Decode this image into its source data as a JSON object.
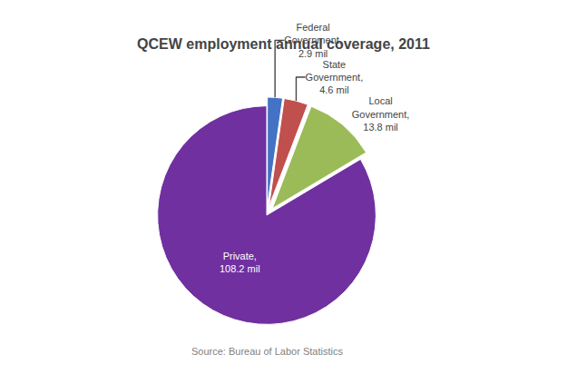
{
  "chart_data": {
    "type": "pie",
    "title": "QCEW employment annual coverage, 2011",
    "categories": [
      "Federal\nGovernment,\n2.9 mil",
      "State\nGovernment,\n4.6 mil",
      "Local\nGovernment,\n13.8 mil",
      "Private,\n108.2 mil"
    ],
    "values": [
      2.9,
      4.6,
      13.8,
      108.2
    ],
    "colors": [
      "#4472C4",
      "#C0504D",
      "#9BBB59",
      "#7030A0"
    ],
    "annotations": [
      "Source: Bureau of Labor Statistics"
    ]
  }
}
